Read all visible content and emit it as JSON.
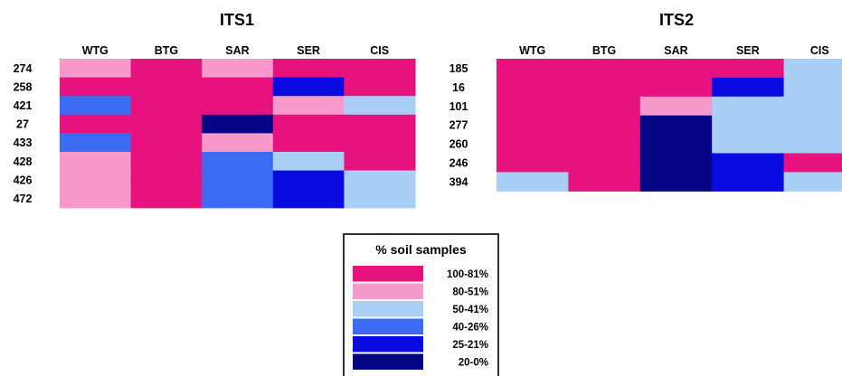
{
  "chart_data": [
    {
      "type": "heatmap",
      "title": "ITS1",
      "columns": [
        "WTG",
        "BTG",
        "SAR",
        "SER",
        "CIS"
      ],
      "rows": [
        "274",
        "258",
        "421",
        "27",
        "433",
        "428",
        "426",
        "472"
      ],
      "value_scale": "% soil samples (binned)",
      "values": [
        [
          "80-51%",
          "100-81%",
          "80-51%",
          "100-81%",
          "100-81%"
        ],
        [
          "100-81%",
          "100-81%",
          "100-81%",
          "25-21%",
          "100-81%"
        ],
        [
          "40-26%",
          "100-81%",
          "100-81%",
          "80-51%",
          "50-41%"
        ],
        [
          "100-81%",
          "100-81%",
          "20-0%",
          "100-81%",
          "100-81%"
        ],
        [
          "40-26%",
          "100-81%",
          "80-51%",
          "100-81%",
          "100-81%"
        ],
        [
          "80-51%",
          "100-81%",
          "40-26%",
          "50-41%",
          "100-81%"
        ],
        [
          "80-51%",
          "100-81%",
          "40-26%",
          "25-21%",
          "50-41%"
        ],
        [
          "80-51%",
          "100-81%",
          "40-26%",
          "25-21%",
          "50-41%"
        ]
      ]
    },
    {
      "type": "heatmap",
      "title": "ITS2",
      "columns": [
        "WTG",
        "BTG",
        "SAR",
        "SER",
        "CIS"
      ],
      "rows": [
        "185",
        "16",
        "101",
        "277",
        "260",
        "246",
        "394"
      ],
      "value_scale": "% soil samples (binned)",
      "values": [
        [
          "100-81%",
          "100-81%",
          "100-81%",
          "100-81%",
          "50-41%"
        ],
        [
          "100-81%",
          "100-81%",
          "100-81%",
          "25-21%",
          "50-41%"
        ],
        [
          "100-81%",
          "100-81%",
          "80-51%",
          "50-41%",
          "50-41%"
        ],
        [
          "100-81%",
          "100-81%",
          "20-0%",
          "50-41%",
          "50-41%"
        ],
        [
          "100-81%",
          "100-81%",
          "20-0%",
          "50-41%",
          "50-41%"
        ],
        [
          "100-81%",
          "100-81%",
          "20-0%",
          "25-21%",
          "100-81%"
        ],
        [
          "50-41%",
          "100-81%",
          "20-0%",
          "25-21%",
          "50-41%"
        ]
      ]
    }
  ],
  "legend": {
    "title": "% soil samples",
    "items": [
      {
        "label": "100-81%",
        "color": "#E8127F"
      },
      {
        "label": "80-51%",
        "color": "#F79ACB"
      },
      {
        "label": "50-41%",
        "color": "#A9CFF7"
      },
      {
        "label": "40-26%",
        "color": "#3B6CF3"
      },
      {
        "label": "25-21%",
        "color": "#0A0BE0"
      },
      {
        "label": "20-0%",
        "color": "#050585"
      }
    ]
  }
}
